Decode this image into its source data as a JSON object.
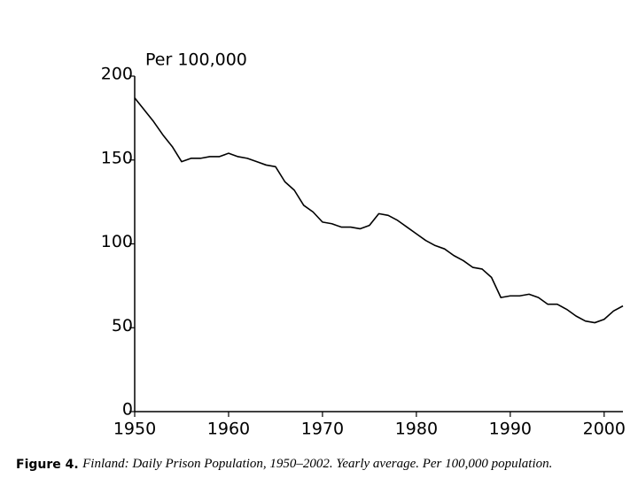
{
  "chart_data": {
    "type": "line",
    "y_label": "Per 100,000",
    "caption_label": "Figure 4.",
    "caption": "Finland: Daily Prison Population, 1950–2002. Yearly average. Per 100,000 population.",
    "x": [
      1950,
      1951,
      1952,
      1953,
      1954,
      1955,
      1956,
      1957,
      1958,
      1959,
      1960,
      1961,
      1962,
      1963,
      1964,
      1965,
      1966,
      1967,
      1968,
      1969,
      1970,
      1971,
      1972,
      1973,
      1974,
      1975,
      1976,
      1977,
      1978,
      1979,
      1980,
      1981,
      1982,
      1983,
      1984,
      1985,
      1986,
      1987,
      1988,
      1989,
      1990,
      1991,
      1992,
      1993,
      1994,
      1995,
      1996,
      1997,
      1998,
      1999,
      2000,
      2001,
      2002
    ],
    "series": [
      {
        "color": "#000000",
        "values": [
          187,
          180,
          173,
          165,
          158,
          149,
          151,
          151,
          152,
          152,
          154,
          152,
          151,
          149,
          147,
          146,
          137,
          132,
          123,
          119,
          113,
          112,
          110,
          110,
          109,
          111,
          118,
          117,
          114,
          110,
          106,
          102,
          99,
          97,
          93,
          90,
          86,
          85,
          80,
          68,
          69,
          69,
          70,
          68,
          64,
          64,
          61,
          57,
          54,
          53,
          55,
          60,
          63
        ]
      }
    ],
    "xlim": [
      1950,
      2002
    ],
    "xticks": [
      1950,
      1960,
      1970,
      1980,
      1990,
      2000
    ],
    "ylim": [
      0,
      200
    ],
    "yticks": [
      0,
      50,
      100,
      150,
      200
    ]
  }
}
